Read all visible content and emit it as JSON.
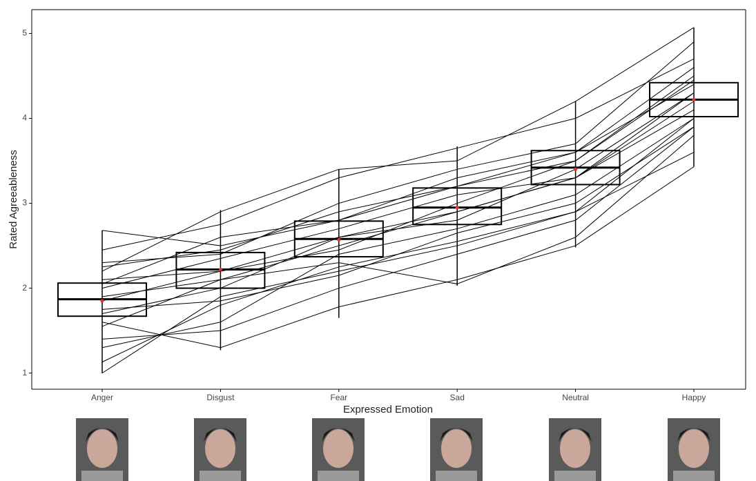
{
  "chart_data": {
    "type": "box",
    "x_label": "Expressed Emotion",
    "y_label": "Rated Agreeableness",
    "categories": [
      "Anger",
      "Disgust",
      "Fear",
      "Sad",
      "Neutral",
      "Happy"
    ],
    "whisker_low": [
      1.0,
      1.27,
      1.65,
      2.03,
      2.48,
      3.43
    ],
    "q1": [
      1.67,
      2.0,
      2.37,
      2.75,
      3.22,
      4.02
    ],
    "median": [
      1.87,
      2.22,
      2.58,
      2.95,
      3.42,
      4.22
    ],
    "q3": [
      2.06,
      2.42,
      2.79,
      3.18,
      3.62,
      4.42
    ],
    "whisker_high": [
      2.68,
      2.92,
      3.4,
      3.67,
      4.2,
      5.07
    ],
    "mean": [
      1.85,
      2.22,
      2.57,
      2.95,
      3.4,
      4.22
    ],
    "participants": [
      [
        1.13,
        1.8,
        2.25,
        2.55,
        2.9,
        3.6
      ],
      [
        1.4,
        1.5,
        2.0,
        2.4,
        2.8,
        3.9
      ],
      [
        1.55,
        2.1,
        2.5,
        2.9,
        3.3,
        4.1
      ],
      [
        1.7,
        2.0,
        2.6,
        2.8,
        3.4,
        4.3
      ],
      [
        1.85,
        2.2,
        2.45,
        3.0,
        3.5,
        4.5
      ],
      [
        2.0,
        2.35,
        2.7,
        3.1,
        3.3,
        4.2
      ],
      [
        2.05,
        2.6,
        2.8,
        3.2,
        3.6,
        4.6
      ],
      [
        2.3,
        2.4,
        3.0,
        3.4,
        3.7,
        4.9
      ],
      [
        2.45,
        2.75,
        3.3,
        3.65,
        4.0,
        4.7
      ],
      [
        1.0,
        1.9,
        2.2,
        2.5,
        2.9,
        4.0
      ],
      [
        2.2,
        2.9,
        3.4,
        3.5,
        4.2,
        5.07
      ],
      [
        1.6,
        1.3,
        1.78,
        2.1,
        2.5,
        3.43
      ],
      [
        1.9,
        2.1,
        2.3,
        2.05,
        2.6,
        3.8
      ],
      [
        2.68,
        2.5,
        2.8,
        3.3,
        3.6,
        4.4
      ],
      [
        1.3,
        1.6,
        2.4,
        2.7,
        3.1,
        4.0
      ],
      [
        2.1,
        2.2,
        2.6,
        2.9,
        3.3,
        4.3
      ],
      [
        1.75,
        1.85,
        2.15,
        2.65,
        3.0,
        3.9
      ],
      [
        2.25,
        2.45,
        2.9,
        3.2,
        3.5,
        4.45
      ]
    ],
    "line_color": "#000000",
    "mean_color": "#e8312a",
    "ylim": [
      0.81,
      5.28
    ],
    "yticks": [
      1,
      2,
      3,
      4,
      5
    ]
  }
}
